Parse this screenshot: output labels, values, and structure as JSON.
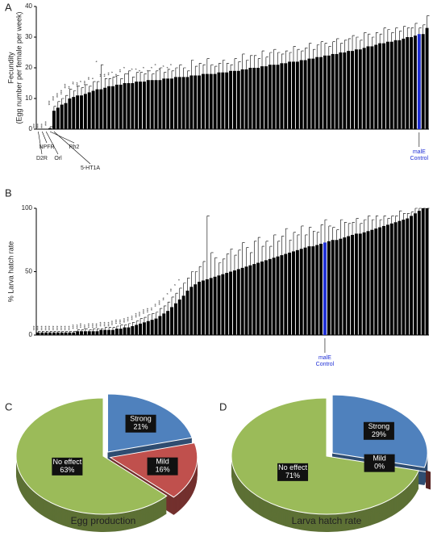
{
  "chart_data": [
    {
      "type": "bar",
      "panel": "A",
      "ylabel": [
        "Fecundity",
        "(Egg number per female per week)"
      ],
      "ylim": [
        0,
        40
      ],
      "yticks": [
        0,
        10,
        20,
        30,
        40
      ],
      "color": "#000000",
      "values": [
        0,
        0,
        0,
        0.3,
        6,
        7,
        8,
        8.5,
        10,
        10.5,
        11,
        11,
        11.5,
        12,
        12.5,
        13,
        13,
        13.5,
        14,
        14,
        14.5,
        14.5,
        15,
        15,
        15,
        15.5,
        15.5,
        15.5,
        16,
        16,
        16,
        16,
        16.5,
        16.5,
        16.5,
        17,
        17,
        17,
        17,
        17.5,
        17.5,
        17.5,
        18,
        18,
        18,
        18,
        18.5,
        18.5,
        18.5,
        19,
        19,
        19,
        19.5,
        19.5,
        20,
        20,
        20,
        20.5,
        20.5,
        21,
        21,
        21,
        21.5,
        21.5,
        22,
        22,
        22,
        22.5,
        22.5,
        23,
        23,
        23.5,
        23.5,
        24,
        24,
        24.5,
        24.5,
        25,
        25,
        25.5,
        25.5,
        26,
        26,
        26.5,
        27,
        27,
        27.5,
        28,
        28,
        28.5,
        28.5,
        29,
        29,
        29.5,
        30,
        30,
        30.5,
        31,
        31,
        33
      ],
      "errors": [
        0,
        0,
        0,
        0.5,
        1.5,
        2,
        2,
        2.5,
        3,
        2,
        3,
        2.5,
        3,
        2,
        3,
        2.5,
        8,
        3,
        2.5,
        3,
        3,
        2,
        3,
        4,
        2,
        3,
        3,
        2.5,
        3,
        2,
        3,
        4,
        2,
        3,
        2.5,
        3,
        4,
        3,
        2,
        5,
        3,
        4,
        3,
        5,
        3,
        2.5,
        3,
        4,
        3,
        2,
        4,
        3,
        5,
        3,
        4,
        4,
        3,
        5,
        3,
        4,
        5,
        4,
        3,
        4,
        3,
        5,
        4,
        3,
        4,
        5,
        3,
        4,
        5,
        4,
        3,
        4,
        5,
        3,
        4,
        4,
        5,
        4,
        3,
        5,
        4,
        3,
        4,
        3,
        5,
        4,
        3,
        4,
        3,
        4,
        3,
        3,
        4,
        2,
        3,
        4
      ],
      "significance": [
        "***",
        "***",
        "***",
        "***",
        "***",
        "***",
        "***",
        "***",
        "***",
        "**",
        "**",
        "***",
        "*",
        "***",
        "**",
        "*",
        "*",
        "**",
        "**",
        "**",
        "*",
        "**",
        "**",
        "*",
        "*",
        "*",
        "*",
        "*",
        "*",
        "*",
        "*",
        "*",
        "*",
        "*",
        "*",
        "*",
        null,
        null,
        null,
        null,
        null,
        null,
        null,
        null,
        null,
        null,
        null,
        null,
        null,
        null,
        null,
        null,
        null,
        null,
        null,
        null,
        null,
        null,
        null,
        null,
        null,
        null,
        null,
        null,
        null,
        null,
        null,
        null,
        null,
        null,
        null,
        null,
        null,
        null,
        null,
        null,
        null,
        null,
        null,
        null,
        null,
        null,
        null,
        null,
        null,
        null,
        null,
        null,
        null,
        null,
        null,
        null,
        null,
        null,
        null,
        null,
        null,
        null,
        null,
        null
      ],
      "highlight": {
        "index": 97,
        "color": "#1f2fd6",
        "label": [
          "malE",
          "Control"
        ]
      },
      "annotations": [
        {
          "text": "D2R",
          "index": 0
        },
        {
          "text": "NPFR",
          "index": 1
        },
        {
          "text": "Orl",
          "index": 2
        },
        {
          "text": "Rh2",
          "index": 3
        },
        {
          "text": "5-HT1A",
          "index": 4
        }
      ]
    },
    {
      "type": "bar",
      "panel": "B",
      "ylabel": [
        "% Larva hatch rate"
      ],
      "ylim": [
        0,
        100
      ],
      "yticks": [
        0,
        50,
        100
      ],
      "color": "#000000",
      "values": [
        2,
        2,
        2,
        2,
        2,
        2,
        2,
        2,
        2,
        2,
        3,
        3,
        3,
        3,
        3,
        3,
        4,
        4,
        4,
        4,
        5,
        5,
        6,
        6,
        7,
        8,
        9,
        10,
        11,
        12,
        13,
        15,
        17,
        19,
        22,
        25,
        28,
        31,
        35,
        38,
        40,
        42,
        43,
        44,
        45,
        46,
        47,
        48,
        49,
        50,
        51,
        52,
        53,
        54,
        55,
        56,
        57,
        58,
        59,
        60,
        61,
        62,
        63,
        64,
        65,
        66,
        67,
        68,
        69,
        70,
        70,
        71,
        72,
        73,
        74,
        75,
        75,
        76,
        77,
        78,
        79,
        80,
        80,
        81,
        82,
        83,
        84,
        85,
        86,
        87,
        88,
        89,
        90,
        91,
        92,
        94,
        96,
        98,
        100,
        100
      ],
      "errors": [
        1,
        1,
        1,
        1,
        1,
        1,
        1,
        1,
        1,
        1,
        1,
        1,
        2,
        1,
        2,
        2,
        1,
        2,
        2,
        2,
        2,
        3,
        2,
        3,
        3,
        3,
        4,
        4,
        5,
        5,
        5,
        6,
        6,
        7,
        8,
        8,
        9,
        10,
        10,
        12,
        10,
        12,
        15,
        50,
        20,
        15,
        10,
        12,
        15,
        18,
        12,
        15,
        20,
        15,
        10,
        18,
        20,
        12,
        15,
        10,
        18,
        12,
        15,
        20,
        10,
        15,
        12,
        18,
        10,
        15,
        12,
        10,
        15,
        18,
        12,
        10,
        8,
        15,
        12,
        10,
        10,
        12,
        8,
        10,
        12,
        8,
        10,
        6,
        8,
        5,
        6,
        5,
        8,
        5,
        4,
        3,
        4,
        2,
        0,
        0
      ],
      "significance": [
        "***",
        "***",
        "***",
        "***",
        "***",
        "***",
        "***",
        "***",
        "***",
        "***",
        "***",
        "***",
        "***",
        "***",
        "***",
        "***",
        "***",
        "***",
        "***",
        "***",
        "***",
        "***",
        "***",
        "***",
        "***",
        "***",
        "***",
        "***",
        "***",
        "***",
        "**",
        "**",
        "***",
        "**",
        "*",
        "**",
        "*",
        "*",
        null,
        null,
        null,
        null,
        null,
        null,
        null,
        null,
        null,
        null,
        null,
        null,
        null,
        null,
        null,
        null,
        null,
        null,
        null,
        null,
        null,
        null,
        null,
        null,
        null,
        null,
        null,
        null,
        null,
        null,
        null,
        null,
        null,
        null,
        null,
        null,
        null,
        null,
        null,
        null,
        null,
        null,
        null,
        null,
        null,
        null,
        null,
        null,
        null,
        null,
        null,
        null,
        null,
        null,
        null,
        null,
        null,
        null,
        null,
        null,
        null,
        null
      ],
      "highlight": {
        "index": 73,
        "color": "#1f2fd6",
        "label": [
          "malE",
          "Control"
        ]
      }
    },
    {
      "type": "pie",
      "panel": "C",
      "title": "Egg production",
      "categories": [
        "Strong",
        "Mild",
        "No effect"
      ],
      "values": [
        21,
        16,
        63
      ],
      "value_labels": [
        "21%",
        "16%",
        "63%"
      ],
      "colors": [
        "#4f81bd",
        "#c0504d",
        "#9bbb59"
      ]
    },
    {
      "type": "pie",
      "panel": "D",
      "title": "Larva hatch rate",
      "categories": [
        "Strong",
        "Mild",
        "No effect"
      ],
      "values": [
        29,
        0,
        71
      ],
      "value_labels": [
        "29%",
        "0%",
        "71%"
      ],
      "colors": [
        "#4f81bd",
        "#c0504d",
        "#9bbb59"
      ]
    }
  ]
}
